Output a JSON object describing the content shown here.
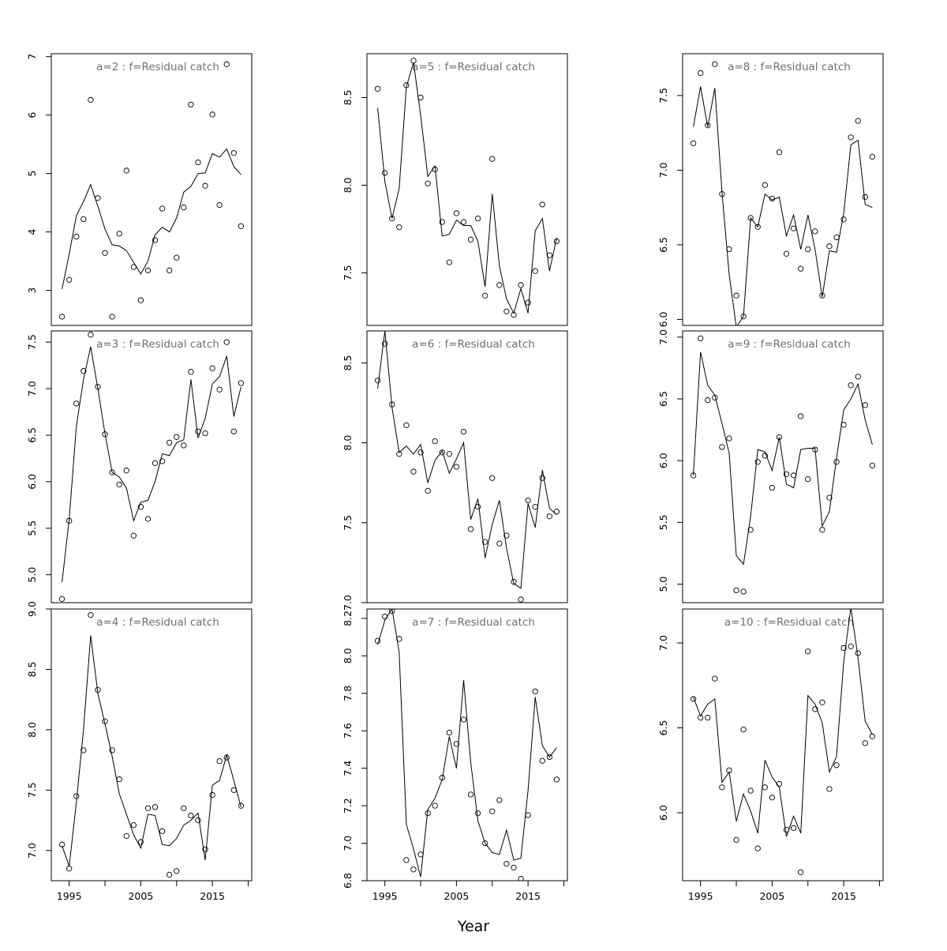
{
  "figure": {
    "xlabel": "Year"
  },
  "chart_data": [
    {
      "type": "scatter",
      "title": "a=2  :  f=Residual catch",
      "xlim": [
        1992.5,
        2020.5
      ],
      "ylim": [
        2.4,
        7.05
      ],
      "yticks": [
        "3",
        "4",
        "5",
        "6",
        "7"
      ],
      "ytick_values": [
        3,
        4,
        5,
        6,
        7
      ],
      "xticks": [
        "1995",
        "2005",
        "2015"
      ],
      "xtick_values": [
        1995,
        2005,
        2015
      ],
      "x": [
        1994,
        1995,
        1996,
        1997,
        1998,
        1999,
        2000,
        2001,
        2002,
        2003,
        2004,
        2005,
        2006,
        2007,
        2008,
        2009,
        2010,
        2011,
        2012,
        2013,
        2014,
        2015,
        2016,
        2017,
        2018,
        2019
      ],
      "series": [
        {
          "kind": "points",
          "values": [
            2.55,
            3.18,
            3.92,
            4.22,
            6.26,
            4.58,
            3.64,
            2.55,
            3.97,
            5.05,
            3.4,
            2.83,
            3.34,
            3.86,
            4.4,
            3.34,
            3.56,
            4.42,
            6.18,
            5.19,
            4.79,
            6.01,
            4.46,
            6.87,
            5.35,
            4.1
          ]
        },
        {
          "kind": "line",
          "values": [
            3.02,
            3.62,
            4.28,
            4.52,
            4.81,
            4.44,
            4.05,
            3.78,
            3.76,
            3.68,
            3.48,
            3.28,
            3.5,
            3.95,
            4.08,
            4.0,
            4.24,
            4.68,
            4.78,
            5.0,
            5.01,
            5.34,
            5.28,
            5.42,
            5.12,
            4.98
          ]
        }
      ]
    },
    {
      "type": "scatter",
      "title": "a=5  :  f=Residual catch",
      "xlim": [
        1992.5,
        2020.5
      ],
      "ylim": [
        7.2,
        8.75
      ],
      "yticks": [
        "7.5",
        "8.0",
        "8.5"
      ],
      "ytick_values": [
        7.5,
        8.0,
        8.5
      ],
      "xticks": [
        "1995",
        "2005",
        "2015"
      ],
      "xtick_values": [
        1995,
        2005,
        2015
      ],
      "x": [
        1994,
        1995,
        1996,
        1997,
        1998,
        1999,
        2000,
        2001,
        2002,
        2003,
        2004,
        2005,
        2006,
        2007,
        2008,
        2009,
        2010,
        2011,
        2012,
        2013,
        2014,
        2015,
        2016,
        2017,
        2018,
        2019
      ],
      "series": [
        {
          "kind": "points",
          "values": [
            8.55,
            8.07,
            7.81,
            7.76,
            8.57,
            8.71,
            8.5,
            8.01,
            8.09,
            7.79,
            7.56,
            7.84,
            7.79,
            7.69,
            7.81,
            7.37,
            8.15,
            7.43,
            7.28,
            7.26,
            7.43,
            7.33,
            7.51,
            7.89,
            7.6,
            7.68
          ]
        },
        {
          "kind": "line",
          "values": [
            8.44,
            8.02,
            7.81,
            7.98,
            8.56,
            8.7,
            8.4,
            8.05,
            8.11,
            7.71,
            7.72,
            7.8,
            7.77,
            7.77,
            7.68,
            7.42,
            7.95,
            7.54,
            7.35,
            7.27,
            7.41,
            7.27,
            7.74,
            7.81,
            7.51,
            7.7
          ]
        }
      ]
    },
    {
      "type": "scatter",
      "title": "a=8  :  f=Residual catch",
      "xlim": [
        1992.5,
        2020.5
      ],
      "ylim": [
        5.96,
        7.78
      ],
      "yticks": [
        "6.0",
        "6.5",
        "7.0",
        "7.5"
      ],
      "ytick_values": [
        6.0,
        6.5,
        7.0,
        7.5
      ],
      "xticks": [
        "1995",
        "2005",
        "2015"
      ],
      "xtick_values": [
        1995,
        2005,
        2015
      ],
      "x": [
        1994,
        1995,
        1996,
        1997,
        1998,
        1999,
        2000,
        2001,
        2002,
        2003,
        2004,
        2005,
        2006,
        2007,
        2008,
        2009,
        2010,
        2011,
        2012,
        2013,
        2014,
        2015,
        2016,
        2017,
        2018,
        2019
      ],
      "series": [
        {
          "kind": "points",
          "values": [
            7.18,
            7.65,
            7.3,
            7.71,
            6.84,
            6.47,
            6.16,
            6.02,
            6.68,
            6.62,
            6.9,
            6.81,
            7.12,
            6.44,
            6.61,
            6.34,
            6.47,
            6.59,
            6.16,
            6.49,
            6.55,
            6.67,
            7.22,
            7.33,
            6.82,
            7.09
          ]
        },
        {
          "kind": "line",
          "values": [
            7.29,
            7.56,
            7.29,
            7.55,
            6.85,
            6.3,
            5.95,
            6.02,
            6.68,
            6.62,
            6.84,
            6.8,
            6.82,
            6.56,
            6.7,
            6.47,
            6.7,
            6.47,
            6.15,
            6.46,
            6.45,
            6.71,
            7.17,
            7.2,
            6.77,
            6.75
          ]
        }
      ]
    },
    {
      "type": "scatter",
      "title": "a=3  :  f=Residual catch",
      "xlim": [
        1992.5,
        2020.5
      ],
      "ylim": [
        4.7,
        7.62
      ],
      "yticks": [
        "5.0",
        "5.5",
        "6.0",
        "6.5",
        "7.0",
        "7.5"
      ],
      "ytick_values": [
        5.0,
        5.5,
        6.0,
        6.5,
        7.0,
        7.5
      ],
      "xticks": [
        "1995",
        "2005",
        "2015"
      ],
      "xtick_values": [
        1995,
        2005,
        2015
      ],
      "x": [
        1994,
        1995,
        1996,
        1997,
        1998,
        1999,
        2000,
        2001,
        2002,
        2003,
        2004,
        2005,
        2006,
        2007,
        2008,
        2009,
        2010,
        2011,
        2012,
        2013,
        2014,
        2015,
        2016,
        2017,
        2018,
        2019
      ],
      "series": [
        {
          "kind": "points",
          "values": [
            4.74,
            5.58,
            6.84,
            7.19,
            7.58,
            7.02,
            6.51,
            6.1,
            5.97,
            6.12,
            5.42,
            5.73,
            5.6,
            6.2,
            6.22,
            6.42,
            6.48,
            6.39,
            7.18,
            6.54,
            6.52,
            7.22,
            6.99,
            7.5,
            6.54,
            7.06
          ]
        },
        {
          "kind": "line",
          "values": [
            4.92,
            5.6,
            6.6,
            7.1,
            7.45,
            7.0,
            6.52,
            6.1,
            6.05,
            5.93,
            5.58,
            5.78,
            5.8,
            6.0,
            6.3,
            6.28,
            6.42,
            6.45,
            7.1,
            6.47,
            6.68,
            7.05,
            7.13,
            7.35,
            6.7,
            7.02
          ]
        }
      ]
    },
    {
      "type": "scatter",
      "title": "a=6  :  f=Residual catch",
      "xlim": [
        1992.5,
        2020.5
      ],
      "ylim": [
        7.0,
        8.7
      ],
      "yticks": [
        "7.0",
        "7.5",
        "8.0",
        "8.5"
      ],
      "ytick_values": [
        7.0,
        7.5,
        8.0,
        8.5
      ],
      "xticks": [
        "1995",
        "2005",
        "2015"
      ],
      "xtick_values": [
        1995,
        2005,
        2015
      ],
      "x": [
        1994,
        1995,
        1996,
        1997,
        1998,
        1999,
        2000,
        2001,
        2002,
        2003,
        2004,
        2005,
        2006,
        2007,
        2008,
        2009,
        2010,
        2011,
        2012,
        2013,
        2014,
        2015,
        2016,
        2017,
        2018,
        2019
      ],
      "series": [
        {
          "kind": "points",
          "values": [
            8.39,
            8.62,
            8.24,
            7.93,
            8.11,
            7.82,
            7.94,
            7.7,
            8.01,
            7.94,
            7.93,
            7.85,
            8.07,
            7.46,
            7.6,
            7.38,
            7.78,
            7.37,
            7.42,
            7.13,
            7.02,
            7.64,
            7.6,
            7.78,
            7.54,
            7.57
          ]
        },
        {
          "kind": "line",
          "values": [
            8.34,
            8.7,
            8.22,
            7.94,
            7.98,
            7.93,
            7.99,
            7.75,
            7.89,
            7.95,
            7.81,
            7.9,
            8.0,
            7.52,
            7.65,
            7.28,
            7.49,
            7.64,
            7.34,
            7.12,
            7.09,
            7.62,
            7.47,
            7.83,
            7.59,
            7.55
          ]
        }
      ]
    },
    {
      "type": "scatter",
      "title": "a=9  :  f=Residual catch",
      "xlim": [
        1992.5,
        2020.5
      ],
      "ylim": [
        4.85,
        7.05
      ],
      "yticks": [
        "5.0",
        "5.5",
        "6.0",
        "6.5",
        "7.0"
      ],
      "ytick_values": [
        5.0,
        5.5,
        6.0,
        6.5,
        7.0
      ],
      "xticks": [
        "1995",
        "2005",
        "2015"
      ],
      "xtick_values": [
        1995,
        2005,
        2015
      ],
      "x": [
        1994,
        1995,
        1996,
        1997,
        1998,
        1999,
        2000,
        2001,
        2002,
        2003,
        2004,
        2005,
        2006,
        2007,
        2008,
        2009,
        2010,
        2011,
        2012,
        2013,
        2014,
        2015,
        2016,
        2017,
        2018,
        2019
      ],
      "series": [
        {
          "kind": "points",
          "values": [
            5.88,
            6.99,
            6.49,
            6.51,
            6.11,
            6.18,
            4.95,
            4.94,
            5.44,
            5.99,
            6.04,
            5.78,
            6.19,
            5.89,
            5.88,
            6.36,
            5.85,
            6.09,
            5.44,
            5.7,
            5.99,
            6.29,
            6.61,
            6.68,
            6.45,
            5.96
          ]
        },
        {
          "kind": "line",
          "values": [
            5.88,
            6.88,
            6.61,
            6.53,
            6.3,
            6.06,
            5.23,
            5.16,
            5.55,
            6.09,
            6.07,
            5.92,
            6.19,
            5.81,
            5.78,
            6.09,
            6.1,
            6.1,
            5.47,
            5.59,
            6.02,
            6.41,
            6.5,
            6.62,
            6.33,
            6.13
          ]
        }
      ]
    },
    {
      "type": "scatter",
      "title": "a=4  :  f=Residual catch",
      "xlim": [
        1992.5,
        2020.5
      ],
      "ylim": [
        6.75,
        9.0
      ],
      "yticks": [
        "7.0",
        "7.5",
        "8.0",
        "8.5",
        "9.0"
      ],
      "ytick_values": [
        7.0,
        7.5,
        8.0,
        8.5,
        9.0
      ],
      "xticks": [
        "1995",
        "2005",
        "2015"
      ],
      "xtick_values": [
        1995,
        2005,
        2015
      ],
      "x": [
        1994,
        1995,
        1996,
        1997,
        1998,
        1999,
        2000,
        2001,
        2002,
        2003,
        2004,
        2005,
        2006,
        2007,
        2008,
        2009,
        2010,
        2011,
        2012,
        2013,
        2014,
        2015,
        2016,
        2017,
        2018,
        2019
      ],
      "series": [
        {
          "kind": "points",
          "values": [
            7.05,
            6.85,
            7.45,
            7.83,
            8.95,
            8.33,
            8.07,
            7.83,
            7.59,
            7.12,
            7.21,
            7.07,
            7.35,
            7.36,
            7.16,
            6.8,
            6.83,
            7.35,
            7.29,
            7.25,
            7.01,
            7.46,
            7.74,
            7.77,
            7.5,
            7.37
          ]
        },
        {
          "kind": "line",
          "values": [
            7.04,
            6.87,
            7.4,
            8.0,
            8.78,
            8.3,
            8.05,
            7.78,
            7.47,
            7.3,
            7.13,
            7.02,
            7.3,
            7.29,
            7.05,
            7.04,
            7.1,
            7.21,
            7.25,
            7.31,
            6.92,
            7.54,
            7.58,
            7.79,
            7.58,
            7.36
          ]
        }
      ]
    },
    {
      "type": "scatter",
      "title": "a=7  :  f=Residual catch",
      "xlim": [
        1992.5,
        2020.5
      ],
      "ylim": [
        6.8,
        8.25
      ],
      "yticks": [
        "6.8",
        "7.0",
        "7.2",
        "7.4",
        "7.6",
        "7.8",
        "8.0",
        "8.2"
      ],
      "ytick_values": [
        6.8,
        7.0,
        7.2,
        7.4,
        7.6,
        7.8,
        8.0,
        8.2
      ],
      "xticks": [
        "1995",
        "2005",
        "2015"
      ],
      "xtick_values": [
        1995,
        2005,
        2015
      ],
      "x": [
        1994,
        1995,
        1996,
        1997,
        1998,
        1999,
        2000,
        2001,
        2002,
        2003,
        2004,
        2005,
        2006,
        2007,
        2008,
        2009,
        2010,
        2011,
        2012,
        2013,
        2014,
        2015,
        2016,
        2017,
        2018,
        2019
      ],
      "series": [
        {
          "kind": "points",
          "values": [
            8.08,
            8.21,
            8.24,
            8.09,
            6.91,
            6.86,
            6.94,
            7.16,
            7.2,
            7.35,
            7.59,
            7.53,
            7.66,
            7.26,
            7.16,
            7.0,
            7.17,
            7.23,
            6.89,
            6.87,
            6.81,
            7.15,
            7.81,
            7.44,
            7.46,
            7.34
          ]
        },
        {
          "kind": "line",
          "values": [
            8.06,
            8.19,
            8.25,
            8.02,
            7.1,
            6.97,
            6.82,
            7.18,
            7.24,
            7.34,
            7.57,
            7.4,
            7.87,
            7.43,
            7.12,
            7.0,
            6.95,
            6.94,
            7.07,
            6.91,
            6.92,
            7.28,
            7.78,
            7.52,
            7.46,
            7.51
          ]
        }
      ]
    },
    {
      "type": "scatter",
      "title": "a=10  :  f=Residual catch",
      "xlim": [
        1992.5,
        2020.5
      ],
      "ylim": [
        5.6,
        7.2
      ],
      "yticks": [
        "6.0",
        "6.5",
        "7.0"
      ],
      "ytick_values": [
        6.0,
        6.5,
        7.0
      ],
      "xticks": [
        "1995",
        "2005",
        "2015"
      ],
      "xtick_values": [
        1995,
        2005,
        2015
      ],
      "x": [
        1994,
        1995,
        1996,
        1997,
        1998,
        1999,
        2000,
        2001,
        2002,
        2003,
        2004,
        2005,
        2006,
        2007,
        2008,
        2009,
        2010,
        2011,
        2012,
        2013,
        2014,
        2015,
        2016,
        2017,
        2018,
        2019
      ],
      "series": [
        {
          "kind": "points",
          "values": [
            6.67,
            6.56,
            6.56,
            6.79,
            6.15,
            6.25,
            5.84,
            6.49,
            6.13,
            5.79,
            6.15,
            6.09,
            6.17,
            5.9,
            5.91,
            5.65,
            6.95,
            6.61,
            6.65,
            6.14,
            6.28,
            6.97,
            6.98,
            6.94,
            6.41,
            6.45
          ]
        },
        {
          "kind": "line",
          "values": [
            6.68,
            6.57,
            6.64,
            6.67,
            6.18,
            6.24,
            5.95,
            6.11,
            6.01,
            5.88,
            6.31,
            6.21,
            6.15,
            5.86,
            5.98,
            5.88,
            6.69,
            6.64,
            6.53,
            6.24,
            6.33,
            6.89,
            7.21,
            6.91,
            6.54,
            6.46
          ]
        }
      ]
    }
  ]
}
